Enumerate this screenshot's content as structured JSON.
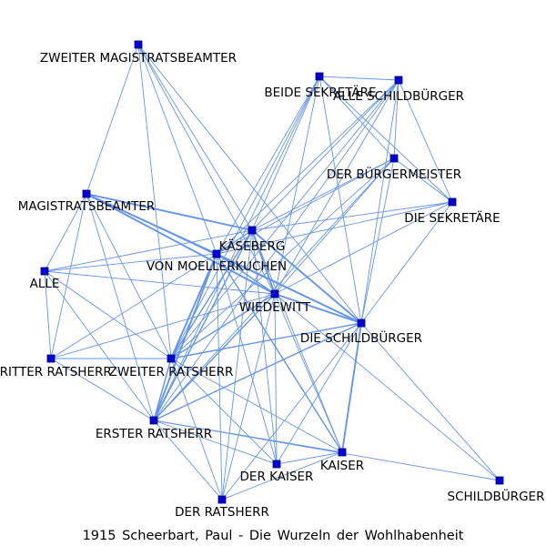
{
  "caption": "1915 Scheerbart, Paul - Die Wurzeln der Wohlhabenheit",
  "colors": {
    "edge": "#6495ed",
    "node": "#0000dd",
    "label": "#000000"
  },
  "nodes": [
    {
      "id": "zm",
      "label": "ZWEITER MAGISTRATSBEAMTER"
    },
    {
      "id": "bs",
      "label": "BEIDE SEKRETÄRE"
    },
    {
      "id": "as",
      "label": "ALLE SCHILDBÜRGER"
    },
    {
      "id": "bm",
      "label": "DER BÜRGERMEISTER"
    },
    {
      "id": "mb",
      "label": "MAGISTRATSBEAMTER"
    },
    {
      "id": "ds",
      "label": "DIE SEKRETÄRE"
    },
    {
      "id": "kb",
      "label": "KÄSEBERG"
    },
    {
      "id": "vm",
      "label": "VON MOELLERKUCHEN"
    },
    {
      "id": "al",
      "label": "ALLE"
    },
    {
      "id": "ww",
      "label": "WIEDEWITT"
    },
    {
      "id": "dsb",
      "label": "DIE SCHILDBÜRGER"
    },
    {
      "id": "dr",
      "label": "DRITTER RATSHERR"
    },
    {
      "id": "zr",
      "label": "ZWEITER RATSHERR"
    },
    {
      "id": "er",
      "label": "ERSTER RATSHERR"
    },
    {
      "id": "ks",
      "label": "KAISER"
    },
    {
      "id": "dk",
      "label": "DER KAISER"
    },
    {
      "id": "sb",
      "label": "SCHILDBÜRGER"
    },
    {
      "id": "drh",
      "label": "DER RATSHERR"
    }
  ],
  "edges": [
    [
      "zm",
      "mb",
      1
    ],
    [
      "zm",
      "kb",
      1
    ],
    [
      "zm",
      "vm",
      1
    ],
    [
      "zm",
      "ww",
      1
    ],
    [
      "zm",
      "dsb",
      1
    ],
    [
      "zm",
      "zr",
      1
    ],
    [
      "bs",
      "as",
      1
    ],
    [
      "bs",
      "bm",
      1
    ],
    [
      "bs",
      "ds",
      1
    ],
    [
      "bs",
      "kb",
      1
    ],
    [
      "bs",
      "vm",
      1
    ],
    [
      "bs",
      "ww",
      1
    ],
    [
      "bs",
      "dsb",
      1
    ],
    [
      "bs",
      "zr",
      1
    ],
    [
      "bs",
      "er",
      1
    ],
    [
      "as",
      "bm",
      1
    ],
    [
      "as",
      "ds",
      1
    ],
    [
      "as",
      "kb",
      1
    ],
    [
      "as",
      "vm",
      1
    ],
    [
      "as",
      "ww",
      1
    ],
    [
      "as",
      "dsb",
      1
    ],
    [
      "as",
      "zr",
      1
    ],
    [
      "as",
      "er",
      1
    ],
    [
      "bm",
      "ds",
      1
    ],
    [
      "bm",
      "kb",
      1
    ],
    [
      "bm",
      "vm",
      1
    ],
    [
      "bm",
      "ww",
      1
    ],
    [
      "bm",
      "dsb",
      1
    ],
    [
      "bm",
      "zr",
      1
    ],
    [
      "bm",
      "er",
      1
    ],
    [
      "ds",
      "kb",
      1
    ],
    [
      "ds",
      "vm",
      1
    ],
    [
      "ds",
      "ww",
      1
    ],
    [
      "ds",
      "dsb",
      1
    ],
    [
      "mb",
      "al",
      1
    ],
    [
      "mb",
      "kb",
      2
    ],
    [
      "mb",
      "vm",
      2
    ],
    [
      "mb",
      "ww",
      2
    ],
    [
      "mb",
      "dsb",
      1
    ],
    [
      "mb",
      "dr",
      1
    ],
    [
      "mb",
      "zr",
      1
    ],
    [
      "mb",
      "er",
      1
    ],
    [
      "kb",
      "vm",
      1.5
    ],
    [
      "kb",
      "al",
      1
    ],
    [
      "kb",
      "ww",
      2
    ],
    [
      "kb",
      "dsb",
      2
    ],
    [
      "kb",
      "zr",
      1.5
    ],
    [
      "kb",
      "er",
      1.5
    ],
    [
      "kb",
      "ks",
      1
    ],
    [
      "kb",
      "dk",
      1
    ],
    [
      "kb",
      "drh",
      1
    ],
    [
      "vm",
      "al",
      1
    ],
    [
      "vm",
      "ww",
      1.5
    ],
    [
      "vm",
      "dsb",
      2
    ],
    [
      "vm",
      "dr",
      1
    ],
    [
      "vm",
      "zr",
      2
    ],
    [
      "vm",
      "er",
      2
    ],
    [
      "vm",
      "ks",
      1.5
    ],
    [
      "vm",
      "dk",
      1
    ],
    [
      "vm",
      "drh",
      1
    ],
    [
      "al",
      "ww",
      1
    ],
    [
      "al",
      "dr",
      1
    ],
    [
      "al",
      "zr",
      1
    ],
    [
      "al",
      "er",
      1
    ],
    [
      "ww",
      "dsb",
      2
    ],
    [
      "ww",
      "zr",
      1.5
    ],
    [
      "ww",
      "er",
      1.5
    ],
    [
      "ww",
      "ks",
      1
    ],
    [
      "ww",
      "dk",
      1
    ],
    [
      "ww",
      "drh",
      1
    ],
    [
      "ww",
      "sb",
      1
    ],
    [
      "ww",
      "dr",
      1
    ],
    [
      "dsb",
      "zr",
      1.5
    ],
    [
      "dsb",
      "er",
      1.5
    ],
    [
      "dsb",
      "ks",
      2
    ],
    [
      "dsb",
      "dk",
      1
    ],
    [
      "dsb",
      "drh",
      1
    ],
    [
      "dsb",
      "sb",
      1
    ],
    [
      "dr",
      "zr",
      1
    ],
    [
      "dr",
      "er",
      1
    ],
    [
      "zr",
      "er",
      1.5
    ],
    [
      "zr",
      "ks",
      1
    ],
    [
      "zr",
      "dk",
      1
    ],
    [
      "zr",
      "drh",
      1
    ],
    [
      "er",
      "ks",
      1
    ],
    [
      "er",
      "dk",
      1
    ],
    [
      "er",
      "drh",
      1
    ],
    [
      "er",
      "sb",
      1
    ],
    [
      "ks",
      "dk",
      1
    ],
    [
      "ks",
      "drh",
      1
    ]
  ]
}
